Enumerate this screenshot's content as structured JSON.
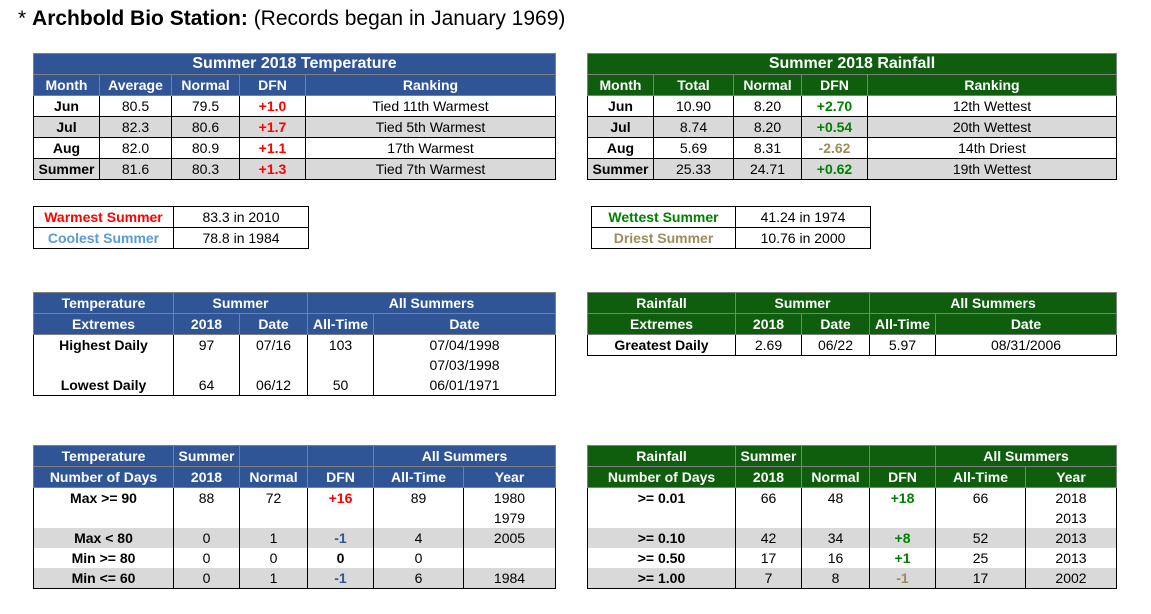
{
  "title": {
    "bold": "Archbold Bio Station:",
    "rest": " (Records began in January 1969)",
    "star": "*"
  },
  "temp_summary": {
    "caption": "Summer 2018 Temperature",
    "headers": [
      "Month",
      "Average",
      "Normal",
      "DFN",
      "Ranking"
    ],
    "rows": [
      [
        "Jun",
        "80.5",
        "79.5",
        "+1.0",
        "Tied 11th Warmest"
      ],
      [
        "Jul",
        "82.3",
        "80.6",
        "+1.7",
        "Tied 5th Warmest"
      ],
      [
        "Aug",
        "82.0",
        "80.9",
        "+1.1",
        "17th Warmest"
      ],
      [
        "Summer",
        "81.6",
        "80.3",
        "+1.3",
        "Tied 7th Warmest"
      ]
    ]
  },
  "rain_summary": {
    "caption": "Summer 2018 Rainfall",
    "headers": [
      "Month",
      "Total",
      "Normal",
      "DFN",
      "Ranking"
    ],
    "rows": [
      [
        "Jun",
        "10.90",
        "8.20",
        "+2.70",
        "12th Wettest"
      ],
      [
        "Jul",
        "8.74",
        "8.20",
        "+0.54",
        "20th Wettest"
      ],
      [
        "Aug",
        "5.69",
        "8.31",
        "-2.62",
        "14th Driest"
      ],
      [
        "Summer",
        "25.33",
        "24.71",
        "+0.62",
        "19th Wettest"
      ]
    ]
  },
  "temp_records": [
    {
      "label": "Warmest Summer",
      "value": "83.3 in 2010",
      "color": "#ff0000"
    },
    {
      "label": "Coolest Summer",
      "value": "78.8 in 1984",
      "color": "#5b9bd5"
    }
  ],
  "rain_records": [
    {
      "label": "Wettest Summer",
      "value": "41.24 in 1974",
      "color": "#008000"
    },
    {
      "label": "Driest Summer",
      "value": "10.76 in 2000",
      "color": "#9c8c5c"
    }
  ],
  "temp_extremes": {
    "h1": [
      "Temperature",
      "Summer",
      "All Summers"
    ],
    "h2": [
      "Extremes",
      "2018",
      "Date",
      "All-Time",
      "Date"
    ],
    "rows": [
      [
        "Highest Daily",
        "97",
        "07/16",
        "103",
        "07/04/1998"
      ],
      [
        "",
        "",
        "",
        "",
        "07/03/1998"
      ],
      [
        "Lowest Daily",
        "64",
        "06/12",
        "50",
        "06/01/1971"
      ]
    ]
  },
  "rain_extremes": {
    "h1": [
      "Rainfall",
      "Summer",
      "All Summers"
    ],
    "h2": [
      "Extremes",
      "2018",
      "Date",
      "All-Time",
      "Date"
    ],
    "rows": [
      [
        "Greatest Daily",
        "2.69",
        "06/22",
        "5.97",
        "08/31/2006"
      ]
    ]
  },
  "temp_days": {
    "h1": [
      "Temperature",
      "Summer",
      "",
      "",
      "All Summers"
    ],
    "h2": [
      "Number of Days",
      "2018",
      "Normal",
      "DFN",
      "All-Time",
      "Year"
    ],
    "rows": [
      [
        "Max >= 90",
        "88",
        "72",
        "+16",
        "89",
        "1980"
      ],
      [
        "",
        "",
        "",
        "",
        "",
        "1979"
      ],
      [
        "Max < 80",
        "0",
        "1",
        "-1",
        "4",
        "2005"
      ],
      [
        "Min >= 80",
        "0",
        "0",
        "0",
        "0",
        ""
      ],
      [
        "Min <= 60",
        "0",
        "1",
        "-1",
        "6",
        "1984"
      ]
    ]
  },
  "rain_days": {
    "h1": [
      "Rainfall",
      "Summer",
      "",
      "",
      "All Summers"
    ],
    "h2": [
      "Number of Days",
      "2018",
      "Normal",
      "DFN",
      "All-Time",
      "Year"
    ],
    "rows": [
      [
        ">= 0.01",
        "66",
        "48",
        "+18",
        "66",
        "2018"
      ],
      [
        "",
        "",
        "",
        "",
        "",
        "2013"
      ],
      [
        ">= 0.10",
        "42",
        "34",
        "+8",
        "52",
        "2013"
      ],
      [
        ">= 0.50",
        "17",
        "16",
        "+1",
        "25",
        "2013"
      ],
      [
        ">= 1.00",
        "7",
        "8",
        "-1",
        "17",
        "2002"
      ]
    ]
  }
}
